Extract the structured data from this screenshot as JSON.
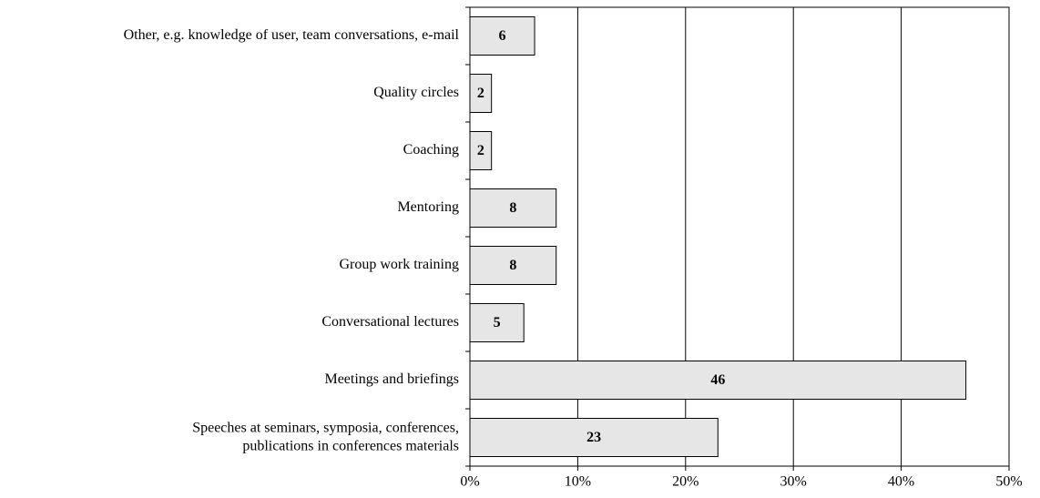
{
  "chart_data": {
    "type": "hbar",
    "categories": [
      "Other, e.g. knowledge of user, team conversations, e-mail",
      "Quality circles",
      "Coaching",
      "Mentoring",
      "Group work training",
      "Conversational lectures",
      "Meetings and briefings",
      "Speeches at seminars, symposia, conferences,\npublications in conferences materials"
    ],
    "values": [
      6,
      2,
      2,
      8,
      8,
      5,
      46,
      23
    ],
    "color": "#e6e6e6",
    "xlim": [
      0,
      50
    ],
    "xticks": [
      {
        "value": 0,
        "label": "0%"
      },
      {
        "value": 10,
        "label": "10%"
      },
      {
        "value": 20,
        "label": "20%"
      },
      {
        "value": 30,
        "label": "30%"
      },
      {
        "value": 40,
        "label": "40%"
      },
      {
        "value": 50,
        "label": "50%"
      }
    ],
    "grid": true
  }
}
